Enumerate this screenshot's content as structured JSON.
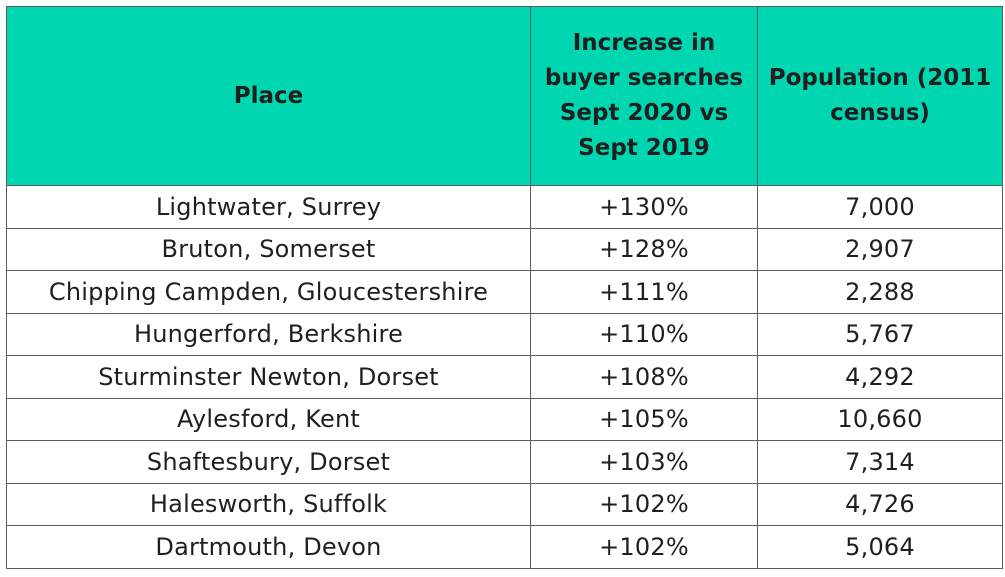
{
  "table": {
    "headers": {
      "place": "Place",
      "increase": "Increase in buyer searches Sept 2020 vs Sept 2019",
      "population": "Population (2011 census)"
    },
    "rows": [
      {
        "place": "Lightwater, Surrey",
        "increase": "+130%",
        "population": "7,000"
      },
      {
        "place": "Bruton, Somerset",
        "increase": "+128%",
        "population": "2,907"
      },
      {
        "place": "Chipping Campden, Gloucestershire",
        "increase": "+111%",
        "population": "2,288"
      },
      {
        "place": "Hungerford, Berkshire",
        "increase": "+110%",
        "population": "5,767"
      },
      {
        "place": "Sturminster Newton, Dorset",
        "increase": "+108%",
        "population": "4,292"
      },
      {
        "place": "Aylesford, Kent",
        "increase": "+105%",
        "population": "10,660"
      },
      {
        "place": "Shaftesbury, Dorset",
        "increase": "+103%",
        "population": "7,314"
      },
      {
        "place": "Halesworth, Suffolk",
        "increase": "+102%",
        "population": "4,726"
      },
      {
        "place": "Dartmouth, Devon",
        "increase": "+102%",
        "population": "5,064"
      }
    ]
  },
  "colors": {
    "header_background": "#00d7b1",
    "border": "#5c5c5c",
    "text": "#1f1f1f"
  }
}
